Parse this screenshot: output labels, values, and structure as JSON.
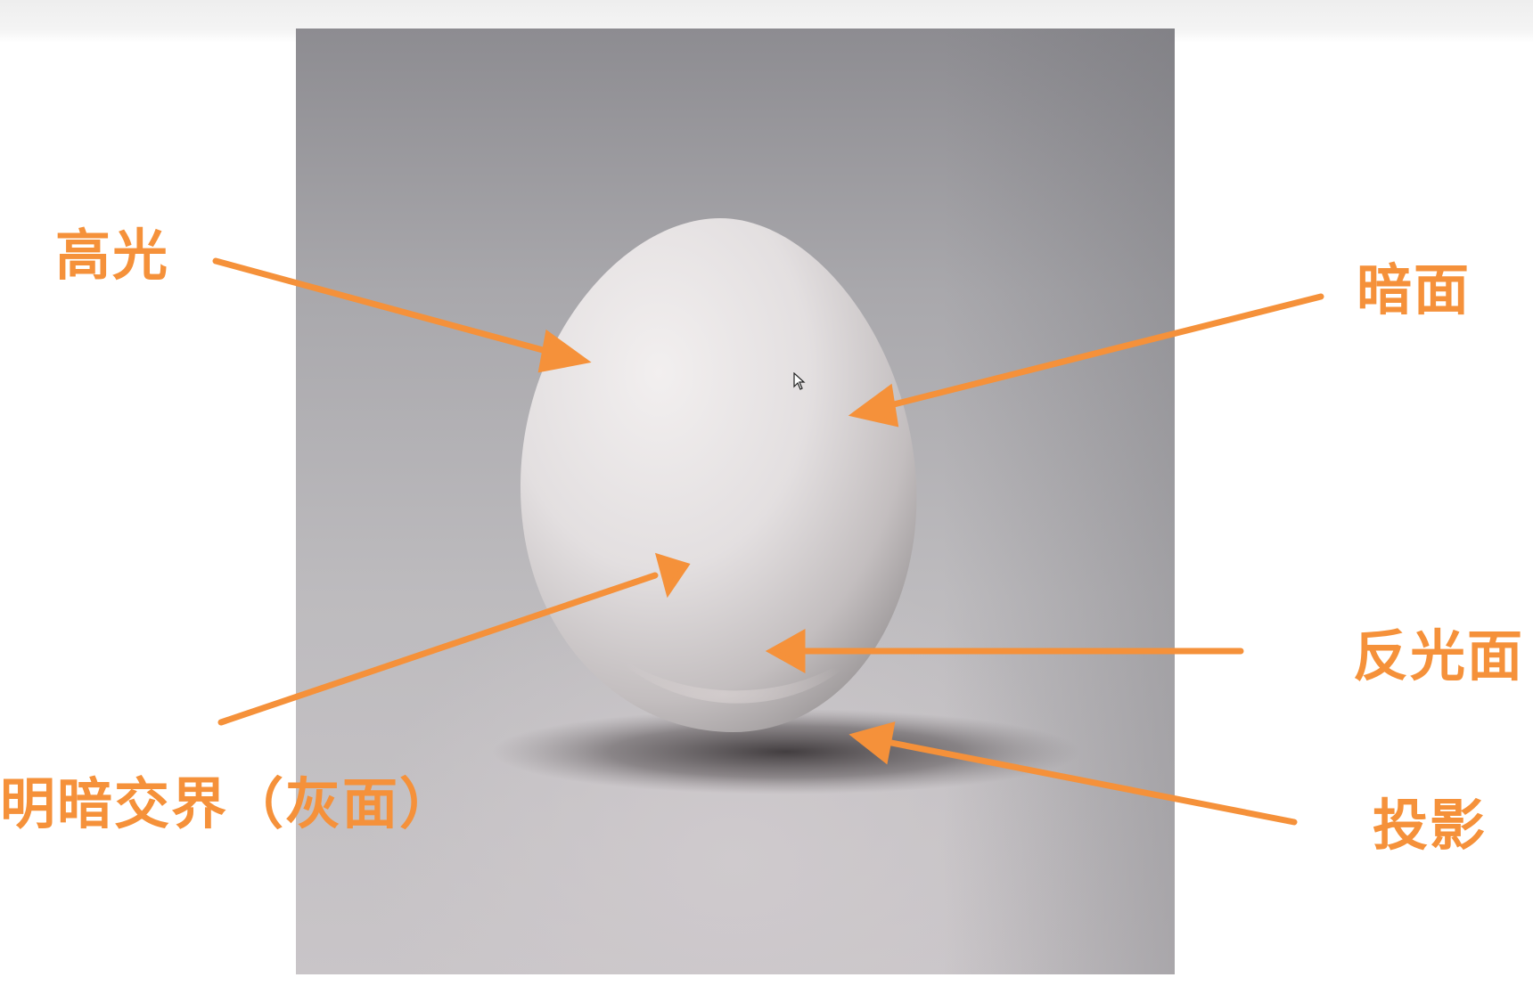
{
  "labels": {
    "highlight": "高光",
    "dark_side": "暗面",
    "terminator": "明暗交界（灰面）",
    "reflected_light": "反光面",
    "cast_shadow": "投影"
  },
  "colors": {
    "annotation": "#f5913a",
    "background_photo_top": "#8d8c91",
    "background_photo_bottom": "#c9c5c8",
    "egg": "#e6e3e4"
  },
  "icons": {
    "pointer": "cursor-arrow-icon",
    "arrow": "arrow-icon"
  }
}
